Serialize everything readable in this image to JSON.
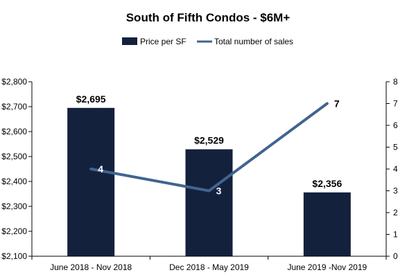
{
  "chart_data": {
    "type": "bar",
    "title": "South of Fifth Condos - $6M+",
    "categories": [
      "June 2018 - Nov 2018",
      "Dec 2018 - May 2019",
      "June 2019 -Nov 2019"
    ],
    "series": [
      {
        "name": "Price per SF",
        "type": "bar",
        "axis": "left",
        "values": [
          2695,
          2529,
          2356
        ],
        "labels": [
          "$2,695",
          "$2,529",
          "$2,356"
        ],
        "color": "#14213d"
      },
      {
        "name": "Total number of sales",
        "type": "line",
        "axis": "right",
        "values": [
          4,
          3,
          7
        ],
        "labels": [
          "4",
          "3",
          "7"
        ],
        "color": "#41648f"
      }
    ],
    "y_left": {
      "ylim": [
        2100,
        2800
      ],
      "ticks": [
        2100,
        2200,
        2300,
        2400,
        2500,
        2600,
        2700,
        2800
      ],
      "tick_labels": [
        "$2,100",
        "$2,200",
        "$2,300",
        "$2,400",
        "$2,500",
        "$2,600",
        "$2,700",
        "$2,800"
      ]
    },
    "y_right": {
      "ylim": [
        0,
        8
      ],
      "ticks": [
        0,
        1,
        2,
        3,
        4,
        5,
        6,
        7,
        8
      ],
      "tick_labels": [
        "0",
        "1",
        "2",
        "3",
        "4",
        "5",
        "6",
        "7",
        "8"
      ]
    },
    "legend_position": "top-center",
    "grid": false
  }
}
